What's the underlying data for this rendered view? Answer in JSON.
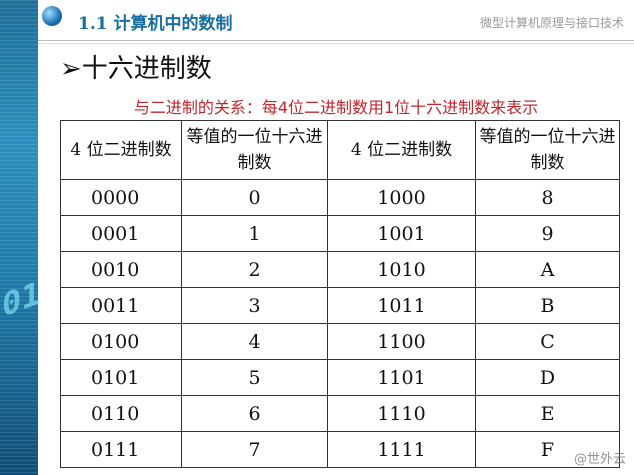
{
  "header": {
    "section": "1.1   计算机中的数制",
    "course": "微型计算机原理与接口技术"
  },
  "title": "➢十六进制数",
  "subtitle": "与二进制的关系：每4位二进制数用1位十六进制数来表示",
  "table": {
    "headers": [
      "4 位二进制数",
      "等值的一位十六进制数",
      "4 位二进制数",
      "等值的一位十六进制数"
    ],
    "rows": [
      [
        "0000",
        "0",
        "1000",
        "8"
      ],
      [
        "0001",
        "1",
        "1001",
        "9"
      ],
      [
        "0010",
        "2",
        "1010",
        "A"
      ],
      [
        "0011",
        "3",
        "1011",
        "B"
      ],
      [
        "0100",
        "4",
        "1100",
        "C"
      ],
      [
        "0101",
        "5",
        "1101",
        "D"
      ],
      [
        "0110",
        "6",
        "1110",
        "E"
      ],
      [
        "0111",
        "7",
        "1111",
        "F"
      ]
    ]
  },
  "watermark": "@世外云",
  "colors": {
    "accent": "#1a6e9e",
    "subtitle": "#c0262c"
  }
}
